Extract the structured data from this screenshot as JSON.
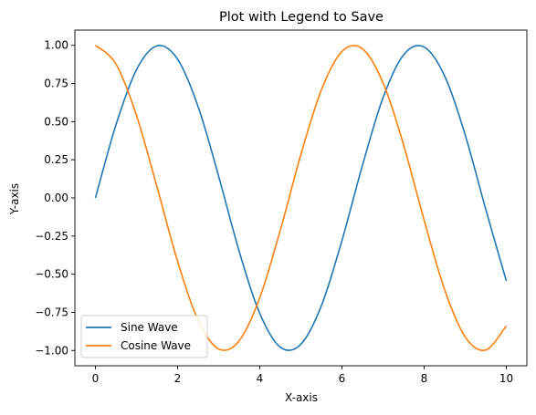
{
  "chart_data": {
    "type": "line",
    "title": "Plot with Legend to Save",
    "xlabel": "X-axis",
    "ylabel": "Y-axis",
    "xlim": [
      -0.5,
      10.5
    ],
    "ylim": [
      -1.1,
      1.1
    ],
    "xticks": [
      0,
      2,
      4,
      6,
      8,
      10
    ],
    "xtick_labels": [
      "0",
      "2",
      "4",
      "6",
      "8",
      "10"
    ],
    "yticks": [
      -1.0,
      -0.75,
      -0.5,
      -0.25,
      0.0,
      0.25,
      0.5,
      0.75,
      1.0
    ],
    "ytick_labels": [
      "−1.00",
      "−0.75",
      "−0.50",
      "−0.25",
      "0.00",
      "0.25",
      "0.50",
      "0.75",
      "1.00"
    ],
    "grid": false,
    "legend_position": "lower-left",
    "series": [
      {
        "name": "Sine Wave",
        "color": "#1f77b4",
        "x": [
          0,
          0.5,
          1,
          1.5,
          2,
          2.5,
          3,
          3.5,
          4,
          4.5,
          5,
          5.5,
          6,
          6.5,
          7,
          7.5,
          8,
          8.5,
          9,
          9.5,
          10
        ],
        "y": [
          0.0,
          0.479,
          0.841,
          0.997,
          0.909,
          0.598,
          0.141,
          -0.351,
          -0.757,
          -0.978,
          -0.959,
          -0.706,
          -0.279,
          0.215,
          0.657,
          0.938,
          0.989,
          0.798,
          0.412,
          -0.075,
          -0.544
        ]
      },
      {
        "name": "Cosine Wave",
        "color": "#ff7f0e",
        "x": [
          0,
          0.5,
          1,
          1.5,
          2,
          2.5,
          3,
          3.5,
          4,
          4.5,
          5,
          5.5,
          6,
          6.5,
          7,
          7.5,
          8,
          8.5,
          9,
          9.5,
          10
        ],
        "y": [
          1.0,
          0.878,
          0.54,
          0.071,
          -0.416,
          -0.801,
          -0.99,
          -0.936,
          -0.654,
          -0.211,
          0.284,
          0.709,
          0.96,
          0.977,
          0.754,
          0.347,
          -0.146,
          -0.602,
          -0.911,
          -0.997,
          -0.839
        ]
      }
    ]
  }
}
